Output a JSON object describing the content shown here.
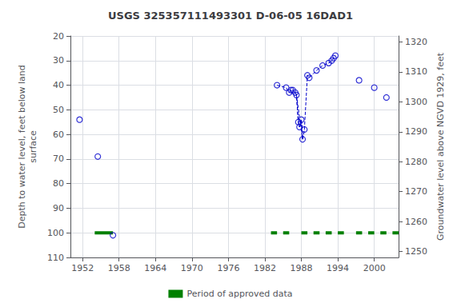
{
  "chart_data": {
    "type": "scatter",
    "title": "USGS 325357111493301 D-06-05 16DAD1",
    "ylabel": "Depth to water level, feet below land\nsurface",
    "y2label": "Groundwater level above NGVD 1929, feet",
    "xlim": [
      1950,
      2004
    ],
    "xticks": [
      1952,
      1958,
      1964,
      1970,
      1976,
      1982,
      1988,
      1994,
      2000
    ],
    "ylim": [
      110,
      20
    ],
    "yticks": [
      20,
      30,
      40,
      50,
      60,
      70,
      80,
      90,
      100,
      110
    ],
    "y2lim": [
      1248,
      1322
    ],
    "y2ticks": [
      1320,
      1310,
      1300,
      1290,
      1280,
      1270,
      1260,
      1250
    ],
    "grid": true,
    "legend": "bottom",
    "series": [
      {
        "name": "Period of approved data",
        "type": "line",
        "color": "#008000",
        "x": [
          1954,
          1957,
          null,
          1983,
          1984,
          null,
          1985,
          1986,
          null,
          1988,
          1989,
          null,
          1990,
          1991,
          null,
          1992,
          1993,
          null,
          1994,
          1995,
          null,
          1997,
          1998,
          null,
          1999,
          2000,
          null,
          2001,
          2002,
          null,
          2003,
          2004
        ],
        "values": [
          100,
          100,
          null,
          100,
          100,
          null,
          100,
          100,
          null,
          100,
          100,
          null,
          100,
          100,
          null,
          100,
          100,
          null,
          100,
          100,
          null,
          100,
          100,
          null,
          100,
          100,
          null,
          100,
          100,
          null,
          100,
          100
        ]
      },
      {
        "type": "line",
        "line_style": "dashed",
        "color": "#0000cc",
        "x": [
          1984.0,
          1985.5,
          1986.0,
          1986.3,
          1986.6,
          1987.0,
          1987.2,
          1987.5,
          1987.7,
          1988.0,
          1988.2,
          1988.5,
          1989.0,
          1989.3,
          1990.5,
          1991.5,
          1992.5,
          1993.0,
          1993.3,
          1993.6
        ],
        "values": [
          40,
          41,
          43,
          42,
          42,
          43,
          44,
          55,
          57,
          54,
          62,
          58,
          36,
          37,
          34,
          32,
          31,
          30,
          29,
          28
        ]
      },
      {
        "type": "line",
        "line_style": "dashed",
        "color": "#0000cc",
        "x": [
          1987.0,
          1987.2,
          1987.5,
          1987.7,
          1988.0,
          1988.2,
          1988.5
        ],
        "values": [
          43,
          44,
          55,
          57,
          54,
          62,
          58
        ]
      },
      {
        "type": "line",
        "line_style": "dashed",
        "color": "#0000cc",
        "x": [
          1987.2,
          1988.2
        ],
        "values": [
          44,
          62
        ]
      },
      {
        "type": "scatter",
        "marker": "open_circle",
        "color": "#0000cc",
        "x": [
          1951.5,
          1954.5,
          1957.0,
          1984.0,
          1985.5,
          1986.0,
          1986.3,
          1986.6,
          1987.0,
          1987.2,
          1987.5,
          1987.7,
          1988.0,
          1988.2,
          1988.5,
          1989.0,
          1989.3,
          1990.5,
          1991.5,
          1992.5,
          1993.0,
          1993.3,
          1993.6,
          1997.5,
          2000.0,
          2002.0
        ],
        "values": [
          54,
          69,
          101,
          40,
          41,
          43,
          42,
          42,
          43,
          44,
          55,
          57,
          54,
          62,
          58,
          36,
          37,
          34,
          32,
          31,
          30,
          29,
          28,
          38,
          41,
          45
        ]
      }
    ]
  }
}
